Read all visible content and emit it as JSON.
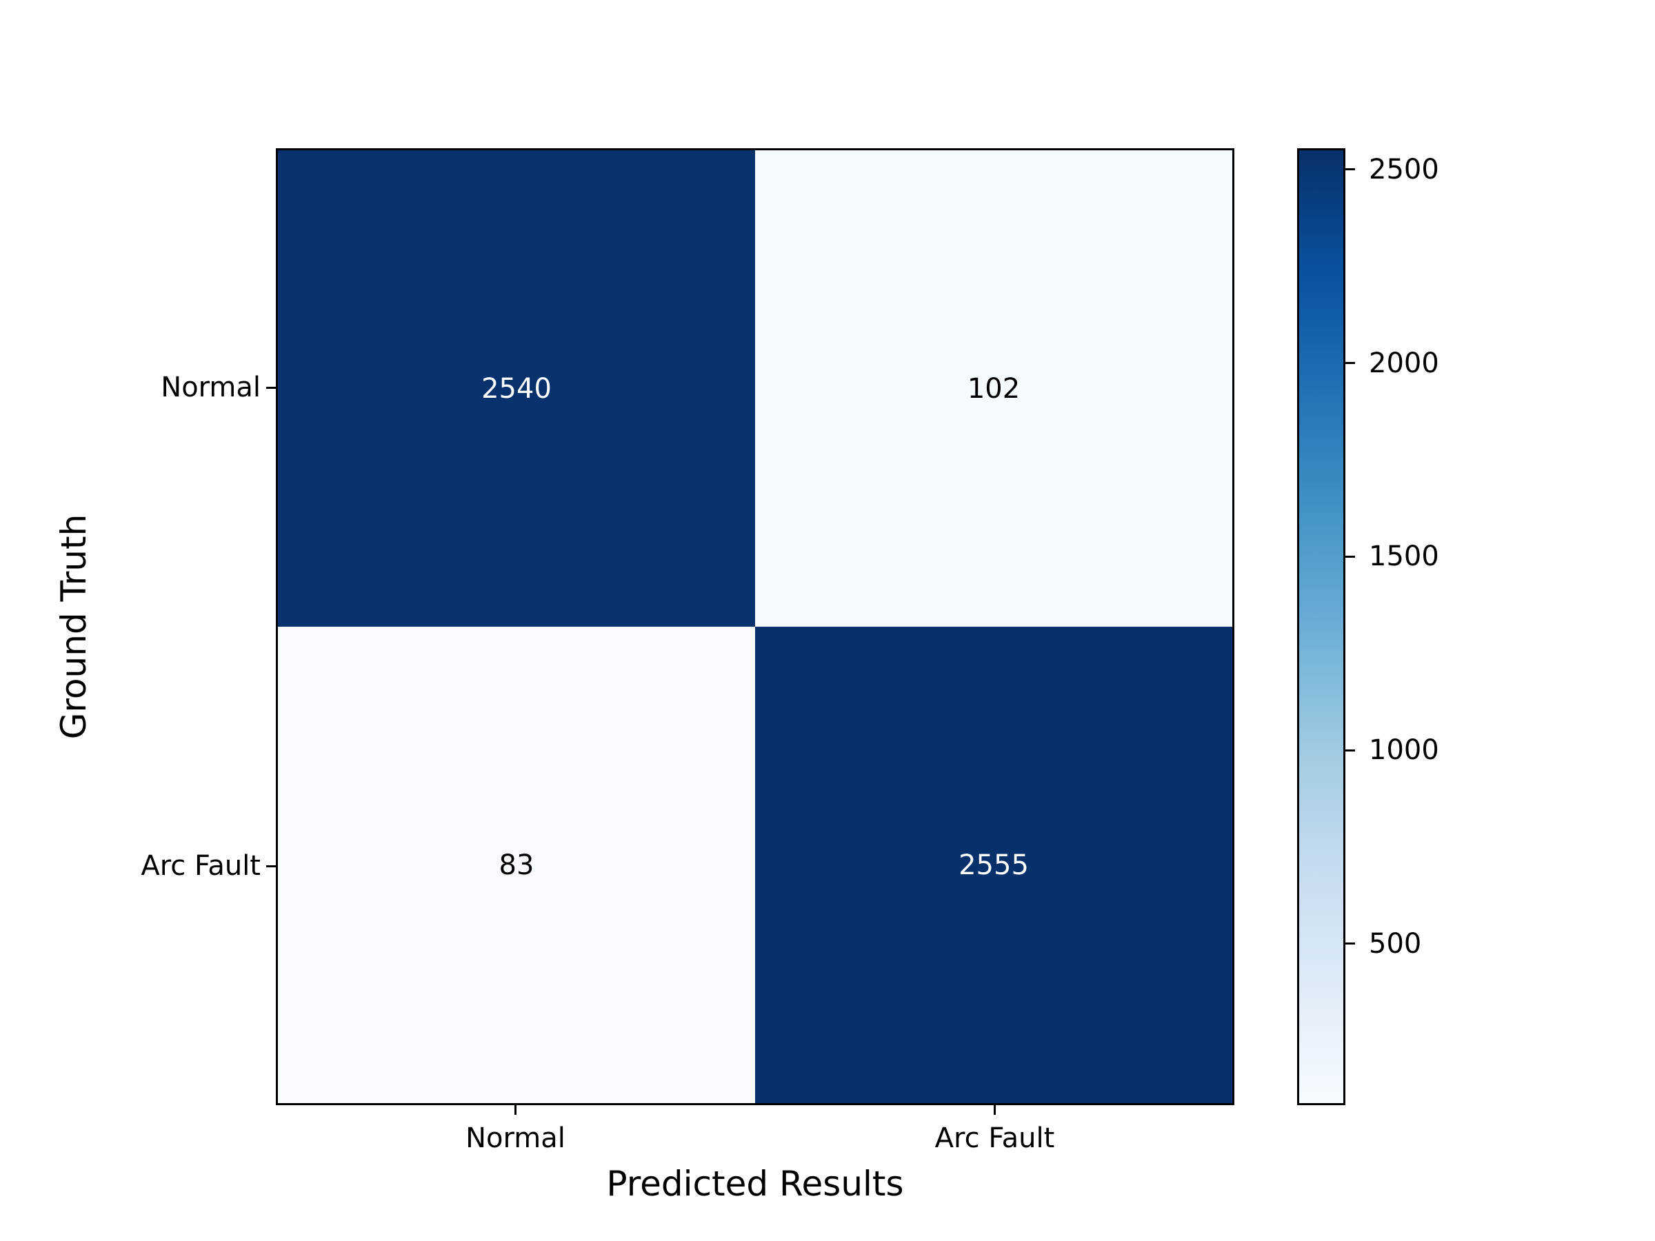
{
  "chart_data": {
    "type": "heatmap",
    "title": "",
    "xlabel": "Predicted Results",
    "ylabel": "Ground Truth",
    "x_categories": [
      "Normal",
      "Arc Fault"
    ],
    "y_categories": [
      "Normal",
      "Arc Fault"
    ],
    "matrix": [
      [
        2540,
        102
      ],
      [
        83,
        2555
      ]
    ],
    "vmin": 83,
    "vmax": 2555,
    "colormap": "Blues",
    "colormap_stops": [
      [
        0.0,
        "#f7fbff"
      ],
      [
        0.125,
        "#deebf7"
      ],
      [
        0.25,
        "#c6dbef"
      ],
      [
        0.375,
        "#9ecae1"
      ],
      [
        0.5,
        "#6baed6"
      ],
      [
        0.625,
        "#4292c6"
      ],
      [
        0.75,
        "#2171b5"
      ],
      [
        0.875,
        "#08519c"
      ],
      [
        1.0,
        "#08306b"
      ]
    ],
    "colorbar_ticks": [
      500,
      1000,
      1500,
      2000,
      2500
    ],
    "colorbar_position": "right",
    "grid": false,
    "colors": {
      "text_on_dark": "#ffffff",
      "text_on_light": "#000000",
      "axis": "#000000",
      "background": "#ffffff"
    }
  }
}
